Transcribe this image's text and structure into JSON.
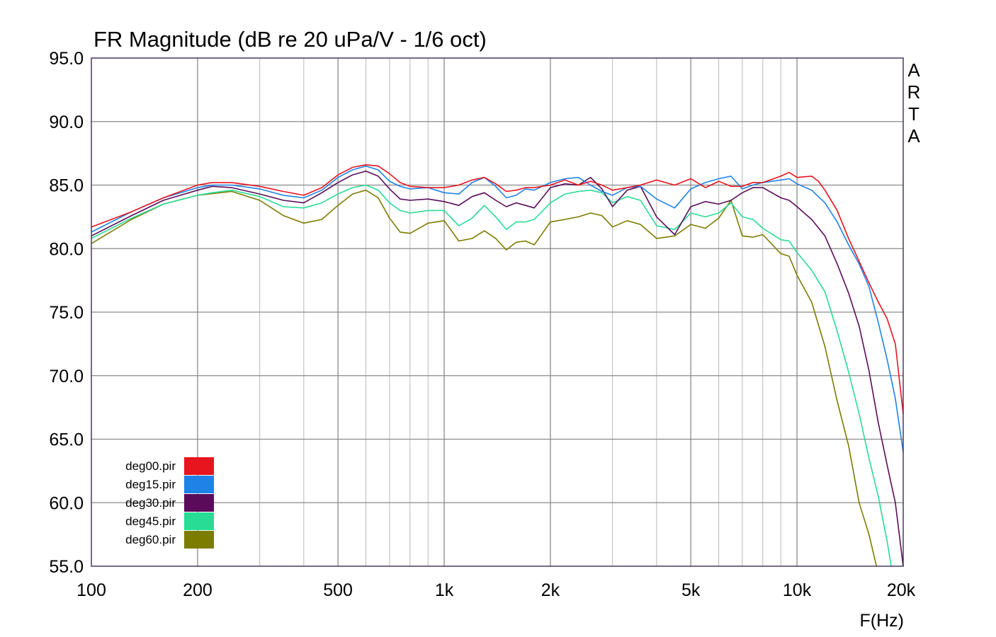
{
  "chart_data": {
    "type": "line",
    "title": "FR Magnitude (dB re 20 uPa/V - 1/6 oct)",
    "brand": "ARTA",
    "xlabel": "F(Hz)",
    "ylabel": "",
    "x_scale": "log",
    "xlim": [
      100,
      20000
    ],
    "ylim": [
      55,
      95
    ],
    "x_ticks": [
      {
        "value": 100,
        "label": "100"
      },
      {
        "value": 200,
        "label": "200"
      },
      {
        "value": 500,
        "label": "500"
      },
      {
        "value": 1000,
        "label": "1k"
      },
      {
        "value": 2000,
        "label": "2k"
      },
      {
        "value": 5000,
        "label": "5k"
      },
      {
        "value": 10000,
        "label": "10k"
      },
      {
        "value": 20000,
        "label": "20k"
      }
    ],
    "y_ticks": [
      {
        "value": 95,
        "label": "95.0"
      },
      {
        "value": 90,
        "label": "90.0"
      },
      {
        "value": 85,
        "label": "85.0"
      },
      {
        "value": 80,
        "label": "80.0"
      },
      {
        "value": 75,
        "label": "75.0"
      },
      {
        "value": 70,
        "label": "70.0"
      },
      {
        "value": 65,
        "label": "65.0"
      },
      {
        "value": 60,
        "label": "60.0"
      },
      {
        "value": 55,
        "label": "55.0"
      }
    ],
    "grid": true,
    "legend_position": "bottom-left",
    "series": [
      {
        "name": "deg00.pir",
        "color": "#e8141e",
        "points": [
          [
            100,
            81.7
          ],
          [
            130,
            82.9
          ],
          [
            160,
            84.0
          ],
          [
            200,
            85.0
          ],
          [
            220,
            85.2
          ],
          [
            250,
            85.2
          ],
          [
            300,
            84.9
          ],
          [
            350,
            84.5
          ],
          [
            400,
            84.2
          ],
          [
            450,
            84.8
          ],
          [
            500,
            85.8
          ],
          [
            550,
            86.4
          ],
          [
            600,
            86.6
          ],
          [
            650,
            86.5
          ],
          [
            700,
            85.9
          ],
          [
            750,
            85.2
          ],
          [
            800,
            84.9
          ],
          [
            900,
            84.8
          ],
          [
            1000,
            84.8
          ],
          [
            1100,
            85.0
          ],
          [
            1200,
            85.4
          ],
          [
            1300,
            85.6
          ],
          [
            1400,
            85.1
          ],
          [
            1500,
            84.5
          ],
          [
            1600,
            84.6
          ],
          [
            1700,
            84.8
          ],
          [
            1800,
            84.8
          ],
          [
            2000,
            85.0
          ],
          [
            2200,
            85.4
          ],
          [
            2400,
            85.0
          ],
          [
            2600,
            85.3
          ],
          [
            2800,
            85.0
          ],
          [
            3000,
            84.6
          ],
          [
            3300,
            84.8
          ],
          [
            3600,
            85.0
          ],
          [
            4000,
            85.4
          ],
          [
            4500,
            85.0
          ],
          [
            5000,
            85.5
          ],
          [
            5500,
            84.8
          ],
          [
            6000,
            85.3
          ],
          [
            6500,
            84.9
          ],
          [
            7000,
            84.9
          ],
          [
            7500,
            85.2
          ],
          [
            8000,
            85.2
          ],
          [
            9000,
            85.7
          ],
          [
            9500,
            86.0
          ],
          [
            10000,
            85.6
          ],
          [
            11000,
            85.7
          ],
          [
            11500,
            85.3
          ],
          [
            12000,
            84.6
          ],
          [
            13000,
            83.0
          ],
          [
            14000,
            80.8
          ],
          [
            15000,
            79.0
          ],
          [
            16000,
            77.3
          ],
          [
            17000,
            75.8
          ],
          [
            18000,
            74.5
          ],
          [
            19000,
            72.5
          ],
          [
            20000,
            67.0
          ]
        ]
      },
      {
        "name": "deg15.pir",
        "color": "#1e82e6",
        "points": [
          [
            100,
            81.3
          ],
          [
            130,
            82.9
          ],
          [
            160,
            84.0
          ],
          [
            200,
            84.8
          ],
          [
            220,
            85.0
          ],
          [
            250,
            85.0
          ],
          [
            300,
            84.7
          ],
          [
            350,
            84.2
          ],
          [
            400,
            84.0
          ],
          [
            450,
            84.6
          ],
          [
            500,
            85.6
          ],
          [
            550,
            86.2
          ],
          [
            600,
            86.5
          ],
          [
            650,
            86.2
          ],
          [
            700,
            85.3
          ],
          [
            750,
            84.9
          ],
          [
            800,
            84.7
          ],
          [
            900,
            84.8
          ],
          [
            1000,
            84.4
          ],
          [
            1100,
            84.3
          ],
          [
            1200,
            85.2
          ],
          [
            1300,
            85.6
          ],
          [
            1400,
            84.9
          ],
          [
            1500,
            84.0
          ],
          [
            1600,
            84.2
          ],
          [
            1700,
            84.7
          ],
          [
            1800,
            84.6
          ],
          [
            2000,
            85.2
          ],
          [
            2200,
            85.5
          ],
          [
            2400,
            85.6
          ],
          [
            2600,
            85.0
          ],
          [
            2800,
            84.5
          ],
          [
            3000,
            84.2
          ],
          [
            3300,
            84.8
          ],
          [
            3600,
            84.9
          ],
          [
            4000,
            83.9
          ],
          [
            4500,
            83.2
          ],
          [
            5000,
            84.7
          ],
          [
            5500,
            85.2
          ],
          [
            6000,
            85.5
          ],
          [
            6500,
            85.7
          ],
          [
            7000,
            84.7
          ],
          [
            7500,
            85.0
          ],
          [
            8000,
            85.2
          ],
          [
            9000,
            85.4
          ],
          [
            9500,
            85.5
          ],
          [
            10000,
            85.1
          ],
          [
            11000,
            84.6
          ],
          [
            12000,
            83.6
          ],
          [
            13000,
            82.1
          ],
          [
            14000,
            80.3
          ],
          [
            15000,
            78.8
          ],
          [
            16000,
            77.0
          ],
          [
            17000,
            74.2
          ],
          [
            18000,
            71.3
          ],
          [
            19000,
            68.2
          ],
          [
            20000,
            64.0
          ]
        ]
      },
      {
        "name": "deg30.pir",
        "color": "#5a0c5a",
        "points": [
          [
            100,
            81.0
          ],
          [
            130,
            82.6
          ],
          [
            160,
            83.8
          ],
          [
            200,
            84.6
          ],
          [
            220,
            84.9
          ],
          [
            250,
            84.8
          ],
          [
            300,
            84.3
          ],
          [
            350,
            83.8
          ],
          [
            400,
            83.6
          ],
          [
            450,
            84.4
          ],
          [
            500,
            85.2
          ],
          [
            550,
            85.8
          ],
          [
            600,
            86.1
          ],
          [
            650,
            85.7
          ],
          [
            700,
            84.7
          ],
          [
            750,
            83.9
          ],
          [
            800,
            83.8
          ],
          [
            900,
            83.9
          ],
          [
            1000,
            83.7
          ],
          [
            1100,
            83.4
          ],
          [
            1200,
            84.1
          ],
          [
            1300,
            84.4
          ],
          [
            1400,
            83.8
          ],
          [
            1500,
            83.3
          ],
          [
            1600,
            83.6
          ],
          [
            1700,
            83.4
          ],
          [
            1800,
            83.2
          ],
          [
            2000,
            84.8
          ],
          [
            2200,
            85.1
          ],
          [
            2400,
            85.0
          ],
          [
            2600,
            85.6
          ],
          [
            2800,
            84.7
          ],
          [
            3000,
            83.3
          ],
          [
            3300,
            84.6
          ],
          [
            3600,
            84.9
          ],
          [
            4000,
            82.5
          ],
          [
            4500,
            81.1
          ],
          [
            5000,
            83.3
          ],
          [
            5500,
            83.7
          ],
          [
            6000,
            83.5
          ],
          [
            6500,
            83.8
          ],
          [
            7000,
            84.4
          ],
          [
            7500,
            84.8
          ],
          [
            8000,
            84.8
          ],
          [
            9000,
            84.0
          ],
          [
            9500,
            83.8
          ],
          [
            10000,
            83.3
          ],
          [
            11000,
            82.3
          ],
          [
            12000,
            81.0
          ],
          [
            13000,
            78.8
          ],
          [
            14000,
            76.5
          ],
          [
            15000,
            73.9
          ],
          [
            16000,
            70.4
          ],
          [
            17000,
            66.3
          ],
          [
            18000,
            63.0
          ],
          [
            19000,
            60.0
          ],
          [
            20000,
            55.0
          ]
        ]
      },
      {
        "name": "deg45.pir",
        "color": "#28dc96",
        "points": [
          [
            100,
            80.8
          ],
          [
            130,
            82.4
          ],
          [
            160,
            83.5
          ],
          [
            200,
            84.2
          ],
          [
            220,
            84.4
          ],
          [
            250,
            84.6
          ],
          [
            300,
            84.1
          ],
          [
            350,
            83.3
          ],
          [
            400,
            83.2
          ],
          [
            450,
            83.6
          ],
          [
            500,
            84.3
          ],
          [
            550,
            84.8
          ],
          [
            600,
            85.0
          ],
          [
            650,
            84.6
          ],
          [
            700,
            83.6
          ],
          [
            750,
            83.0
          ],
          [
            800,
            82.8
          ],
          [
            900,
            83.0
          ],
          [
            1000,
            83.0
          ],
          [
            1100,
            81.8
          ],
          [
            1200,
            82.4
          ],
          [
            1300,
            83.4
          ],
          [
            1400,
            82.5
          ],
          [
            1500,
            81.5
          ],
          [
            1600,
            82.1
          ],
          [
            1700,
            82.1
          ],
          [
            1800,
            82.3
          ],
          [
            2000,
            83.6
          ],
          [
            2200,
            84.3
          ],
          [
            2400,
            84.5
          ],
          [
            2600,
            84.6
          ],
          [
            2800,
            84.4
          ],
          [
            3000,
            83.6
          ],
          [
            3300,
            84.1
          ],
          [
            3600,
            83.8
          ],
          [
            4000,
            81.8
          ],
          [
            4500,
            81.5
          ],
          [
            5000,
            82.8
          ],
          [
            5500,
            82.5
          ],
          [
            6000,
            82.8
          ],
          [
            6500,
            83.6
          ],
          [
            7000,
            82.5
          ],
          [
            7500,
            82.3
          ],
          [
            8000,
            81.6
          ],
          [
            9000,
            80.7
          ],
          [
            9500,
            80.6
          ],
          [
            10000,
            79.7
          ],
          [
            11000,
            78.3
          ],
          [
            12000,
            76.6
          ],
          [
            13000,
            73.5
          ],
          [
            14000,
            70.3
          ],
          [
            15000,
            67.0
          ],
          [
            16000,
            63.5
          ],
          [
            17000,
            60.5
          ],
          [
            18000,
            57.0
          ],
          [
            18500,
            55.0
          ]
        ]
      },
      {
        "name": "deg60.pir",
        "color": "#7c7c00",
        "points": [
          [
            100,
            80.4
          ],
          [
            130,
            82.3
          ],
          [
            160,
            83.5
          ],
          [
            200,
            84.2
          ],
          [
            250,
            84.5
          ],
          [
            300,
            83.8
          ],
          [
            350,
            82.6
          ],
          [
            400,
            82.0
          ],
          [
            450,
            82.3
          ],
          [
            500,
            83.4
          ],
          [
            550,
            84.3
          ],
          [
            600,
            84.6
          ],
          [
            650,
            84.0
          ],
          [
            700,
            82.4
          ],
          [
            750,
            81.3
          ],
          [
            800,
            81.2
          ],
          [
            900,
            82.0
          ],
          [
            1000,
            82.2
          ],
          [
            1100,
            80.6
          ],
          [
            1200,
            80.8
          ],
          [
            1300,
            81.4
          ],
          [
            1400,
            80.8
          ],
          [
            1500,
            79.9
          ],
          [
            1600,
            80.5
          ],
          [
            1700,
            80.6
          ],
          [
            1800,
            80.3
          ],
          [
            2000,
            82.1
          ],
          [
            2200,
            82.3
          ],
          [
            2400,
            82.5
          ],
          [
            2600,
            82.8
          ],
          [
            2800,
            82.6
          ],
          [
            3000,
            81.7
          ],
          [
            3300,
            82.2
          ],
          [
            3600,
            81.9
          ],
          [
            4000,
            80.8
          ],
          [
            4500,
            81.0
          ],
          [
            5000,
            81.9
          ],
          [
            5500,
            81.6
          ],
          [
            6000,
            82.4
          ],
          [
            6500,
            83.8
          ],
          [
            7000,
            81.0
          ],
          [
            7500,
            80.9
          ],
          [
            8000,
            81.1
          ],
          [
            9000,
            79.6
          ],
          [
            9500,
            79.4
          ],
          [
            10000,
            77.9
          ],
          [
            11000,
            75.8
          ],
          [
            12000,
            72.3
          ],
          [
            13000,
            68.0
          ],
          [
            14000,
            64.5
          ],
          [
            15000,
            60.0
          ],
          [
            16000,
            57.5
          ],
          [
            16800,
            55.0
          ]
        ]
      }
    ]
  }
}
